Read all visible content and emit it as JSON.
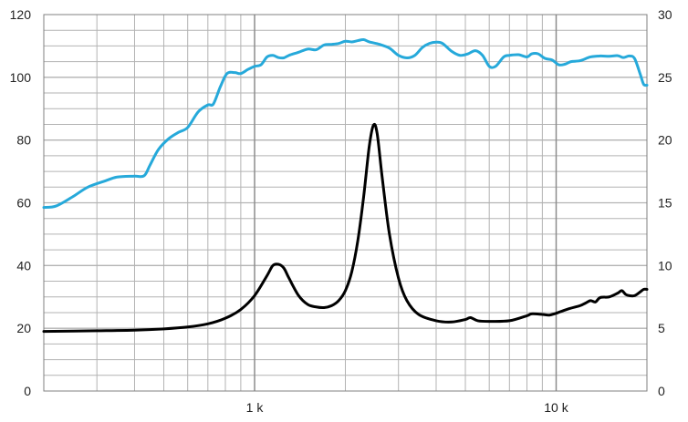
{
  "chart_data": {
    "type": "line",
    "title": "",
    "xlabel": "",
    "ylabel": "",
    "xscale": "log",
    "xlim": [
      200,
      20000
    ],
    "ylim_left": [
      0,
      120
    ],
    "ylim_right": [
      0,
      30
    ],
    "grid": true,
    "legend": "none",
    "x_tick_labels": [
      {
        "value": 1000,
        "label": "1 k"
      },
      {
        "value": 10000,
        "label": "10 k"
      }
    ],
    "y_left_ticks": [
      "0",
      "20",
      "40",
      "60",
      "80",
      "100",
      "120"
    ],
    "y_right_ticks": [
      "0",
      "5",
      "10",
      "15",
      "20",
      "25",
      "30"
    ],
    "colors": {
      "frequency_response": "#26a9da",
      "impedance": "#000000",
      "grid": "#b3b3b3"
    },
    "series": [
      {
        "axis": "left",
        "color": "#26a9da",
        "points": [
          [
            200,
            58.5
          ],
          [
            220,
            59
          ],
          [
            250,
            62
          ],
          [
            280,
            65
          ],
          [
            320,
            67
          ],
          [
            350,
            68.2
          ],
          [
            400,
            68.5
          ],
          [
            430,
            68.6
          ],
          [
            450,
            72
          ],
          [
            480,
            77
          ],
          [
            520,
            80.5
          ],
          [
            560,
            82.5
          ],
          [
            600,
            84
          ],
          [
            650,
            89
          ],
          [
            700,
            91.2
          ],
          [
            730,
            91.5
          ],
          [
            770,
            97
          ],
          [
            810,
            101.2
          ],
          [
            860,
            101.5
          ],
          [
            900,
            101.2
          ],
          [
            950,
            102.5
          ],
          [
            1000,
            103.5
          ],
          [
            1050,
            104
          ],
          [
            1100,
            106.5
          ],
          [
            1150,
            107
          ],
          [
            1200,
            106.3
          ],
          [
            1250,
            106.2
          ],
          [
            1300,
            107
          ],
          [
            1400,
            108
          ],
          [
            1500,
            109
          ],
          [
            1600,
            108.8
          ],
          [
            1700,
            110.3
          ],
          [
            1800,
            110.5
          ],
          [
            1900,
            110.8
          ],
          [
            2000,
            111.5
          ],
          [
            2100,
            111.3
          ],
          [
            2200,
            111.7
          ],
          [
            2300,
            112
          ],
          [
            2400,
            111.3
          ],
          [
            2600,
            110.5
          ],
          [
            2800,
            109.3
          ],
          [
            3000,
            107
          ],
          [
            3200,
            106.2
          ],
          [
            3400,
            107
          ],
          [
            3600,
            109.5
          ],
          [
            3800,
            110.8
          ],
          [
            4000,
            111.2
          ],
          [
            4200,
            110.8
          ],
          [
            4500,
            108.3
          ],
          [
            4800,
            107
          ],
          [
            5100,
            107.5
          ],
          [
            5400,
            108.5
          ],
          [
            5700,
            107
          ],
          [
            6000,
            103.5
          ],
          [
            6300,
            103.5
          ],
          [
            6700,
            106.5
          ],
          [
            7000,
            107
          ],
          [
            7500,
            107.2
          ],
          [
            8000,
            106.5
          ],
          [
            8300,
            107.5
          ],
          [
            8700,
            107.5
          ],
          [
            9200,
            106
          ],
          [
            9700,
            105.5
          ],
          [
            10200,
            104
          ],
          [
            10700,
            104.2
          ],
          [
            11200,
            105
          ],
          [
            12000,
            105.3
          ],
          [
            13000,
            106.5
          ],
          [
            14000,
            106.8
          ],
          [
            15000,
            106.7
          ],
          [
            16000,
            106.9
          ],
          [
            16700,
            106.3
          ],
          [
            17500,
            106.8
          ],
          [
            18200,
            106
          ],
          [
            19000,
            101
          ],
          [
            19500,
            97.8
          ],
          [
            20000,
            97.5
          ]
        ]
      },
      {
        "axis": "right",
        "color": "#000000",
        "points": [
          [
            200,
            4.75
          ],
          [
            300,
            4.8
          ],
          [
            400,
            4.85
          ],
          [
            500,
            4.95
          ],
          [
            600,
            5.1
          ],
          [
            700,
            5.35
          ],
          [
            800,
            5.8
          ],
          [
            900,
            6.5
          ],
          [
            1000,
            7.6
          ],
          [
            1100,
            9.2
          ],
          [
            1150,
            10.0
          ],
          [
            1200,
            10.1
          ],
          [
            1250,
            9.8
          ],
          [
            1300,
            9.0
          ],
          [
            1400,
            7.6
          ],
          [
            1500,
            6.9
          ],
          [
            1600,
            6.7
          ],
          [
            1700,
            6.65
          ],
          [
            1800,
            6.8
          ],
          [
            1900,
            7.2
          ],
          [
            2000,
            8.0
          ],
          [
            2100,
            9.5
          ],
          [
            2200,
            12
          ],
          [
            2300,
            15.5
          ],
          [
            2400,
            19.5
          ],
          [
            2480,
            21.2
          ],
          [
            2550,
            20.5
          ],
          [
            2650,
            17
          ],
          [
            2800,
            12.5
          ],
          [
            3000,
            9.0
          ],
          [
            3200,
            7.2
          ],
          [
            3500,
            6.1
          ],
          [
            4000,
            5.6
          ],
          [
            4500,
            5.5
          ],
          [
            5000,
            5.7
          ],
          [
            5200,
            5.85
          ],
          [
            5500,
            5.6
          ],
          [
            6000,
            5.55
          ],
          [
            7000,
            5.6
          ],
          [
            8000,
            6.0
          ],
          [
            8300,
            6.15
          ],
          [
            9000,
            6.1
          ],
          [
            9500,
            6.05
          ],
          [
            10000,
            6.2
          ],
          [
            11000,
            6.55
          ],
          [
            12000,
            6.8
          ],
          [
            12500,
            7.0
          ],
          [
            13000,
            7.2
          ],
          [
            13500,
            7.1
          ],
          [
            14000,
            7.45
          ],
          [
            15000,
            7.5
          ],
          [
            16000,
            7.8
          ],
          [
            16500,
            8.0
          ],
          [
            17000,
            7.7
          ],
          [
            17500,
            7.6
          ],
          [
            18200,
            7.6
          ],
          [
            19000,
            7.9
          ],
          [
            19500,
            8.1
          ],
          [
            20000,
            8.1
          ]
        ]
      }
    ]
  }
}
